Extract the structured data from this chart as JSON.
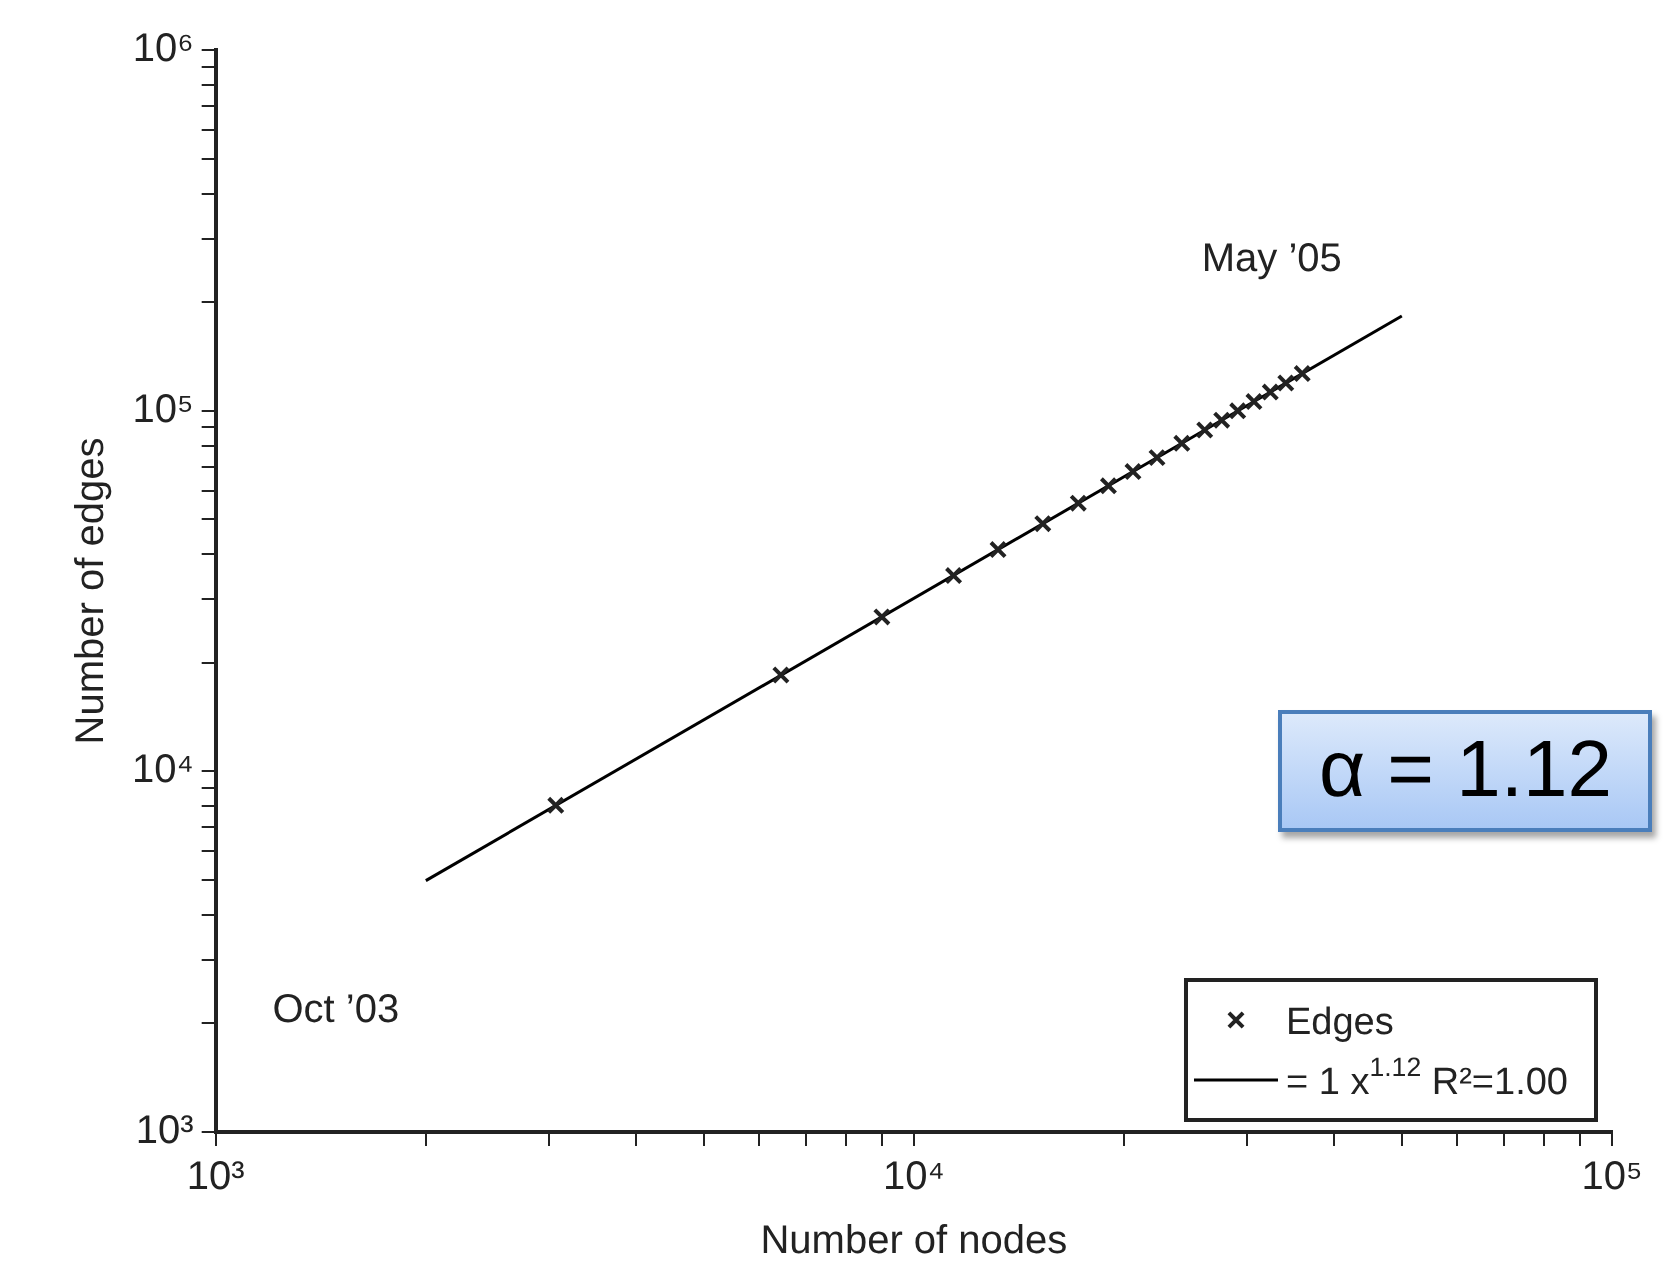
{
  "chart_data": {
    "type": "scatter",
    "xlabel": "Number of nodes",
    "ylabel": "Number of edges",
    "log": "xy",
    "grid": false,
    "legend": "bottom right",
    "xlim": [
      1000,
      100000
    ],
    "ylim": [
      1000,
      1000000
    ],
    "xticks": [
      {
        "value": 1000,
        "label": "10³"
      },
      {
        "value": 2000,
        "label": null
      },
      {
        "value": 3000,
        "label": null
      },
      {
        "value": 4000,
        "label": null
      },
      {
        "value": 5000,
        "label": null
      },
      {
        "value": 6000,
        "label": null
      },
      {
        "value": 7000,
        "label": null
      },
      {
        "value": 8000,
        "label": null
      },
      {
        "value": 9000,
        "label": null
      },
      {
        "value": 10000,
        "label": "10⁴"
      },
      {
        "value": 20000,
        "label": null
      },
      {
        "value": 30000,
        "label": null
      },
      {
        "value": 40000,
        "label": null
      },
      {
        "value": 50000,
        "label": null
      },
      {
        "value": 60000,
        "label": null
      },
      {
        "value": 70000,
        "label": null
      },
      {
        "value": 80000,
        "label": null
      },
      {
        "value": 90000,
        "label": null
      },
      {
        "value": 100000,
        "label": "10⁵"
      }
    ],
    "yticks": [
      {
        "value": 1000,
        "label": "10³"
      },
      {
        "value": 2000,
        "label": null
      },
      {
        "value": 3000,
        "label": null
      },
      {
        "value": 4000,
        "label": null
      },
      {
        "value": 5000,
        "label": null
      },
      {
        "value": 6000,
        "label": null
      },
      {
        "value": 7000,
        "label": null
      },
      {
        "value": 8000,
        "label": null
      },
      {
        "value": 9000,
        "label": null
      },
      {
        "value": 10000,
        "label": "10⁴"
      },
      {
        "value": 20000,
        "label": null
      },
      {
        "value": 30000,
        "label": null
      },
      {
        "value": 40000,
        "label": null
      },
      {
        "value": 50000,
        "label": null
      },
      {
        "value": 60000,
        "label": null
      },
      {
        "value": 70000,
        "label": null
      },
      {
        "value": 80000,
        "label": null
      },
      {
        "value": 90000,
        "label": null
      },
      {
        "value": 100000,
        "label": "10⁵"
      },
      {
        "value": 200000,
        "label": null
      },
      {
        "value": 300000,
        "label": null
      },
      {
        "value": 400000,
        "label": null
      },
      {
        "value": 500000,
        "label": null
      },
      {
        "value": 600000,
        "label": null
      },
      {
        "value": 700000,
        "label": null
      },
      {
        "value": 800000,
        "label": null
      },
      {
        "value": 900000,
        "label": null
      },
      {
        "value": 1000000,
        "label": "10⁶"
      }
    ],
    "series": [
      {
        "name": "Edges",
        "marker": "cross",
        "color": "#222222",
        "x": [
          3070,
          6450,
          9000,
          11400,
          13200,
          15300,
          17200,
          19000,
          20600,
          22300,
          24200,
          26100,
          27600,
          29100,
          30700,
          32400,
          34100,
          36000
        ],
        "values": [
          8050,
          18500,
          26800,
          34900,
          41200,
          48600,
          55400,
          61900,
          67800,
          74100,
          81200,
          88400,
          94100,
          99900,
          106000,
          112600,
          119300,
          126700
        ]
      },
      {
        "name": "= 1 x$^{1.12}$ R²=1.00",
        "type": "line",
        "marker": "none",
        "line_style": "solid",
        "color": "#000000",
        "x": [
          2000,
          50000
        ],
        "values": [
          4977,
          183000
        ]
      }
    ],
    "annotations": [
      "Oct ’03",
      "May ’05",
      "α = 1.12"
    ]
  }
}
